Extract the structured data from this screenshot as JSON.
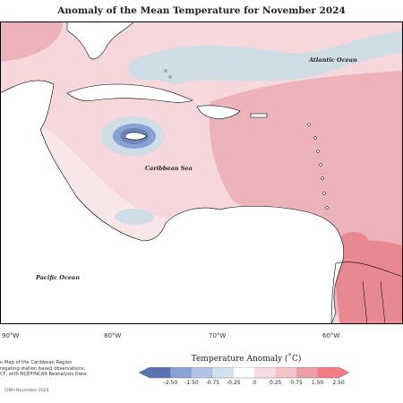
{
  "title": "Anomaly of the Mean Temperature for November 2024",
  "ocean_labels": {
    "atlantic": "Atlantic Ocean",
    "caribbean": "Caribbean Sea",
    "pacific": "Pacific Ocean"
  },
  "longitude_labels": [
    "90°W",
    "80°W",
    "70°W",
    "60°W"
  ],
  "source_text": {
    "line1": "n Map of the Caribbean Region",
    "line2": "regating station based observations,",
    "line3": "CF, with NCEP/NCAR Reanalysis Data."
  },
  "credit": "CIMH November 2024",
  "legend": {
    "title": "Temperature Anomaly (˚C)",
    "ticks": [
      "-2.50",
      "-1.50",
      "-0.75",
      "-0.25",
      "0",
      "0.25",
      "0.75",
      "1.50",
      "2.50"
    ],
    "colors": [
      "#5a74b2",
      "#8ba1d6",
      "#b3c3e8",
      "#d4e1ec",
      "#ffffff",
      "#f7dde1",
      "#f2c3c9",
      "#ec9ea6",
      "#f27b86"
    ]
  },
  "colors": {
    "land": "#ffffff",
    "base_anomaly": "#f6d7dc",
    "warm": "#ecb3ba",
    "hot": "#e88892",
    "cool": "#cfdde7",
    "cold": "#6d86b8"
  }
}
